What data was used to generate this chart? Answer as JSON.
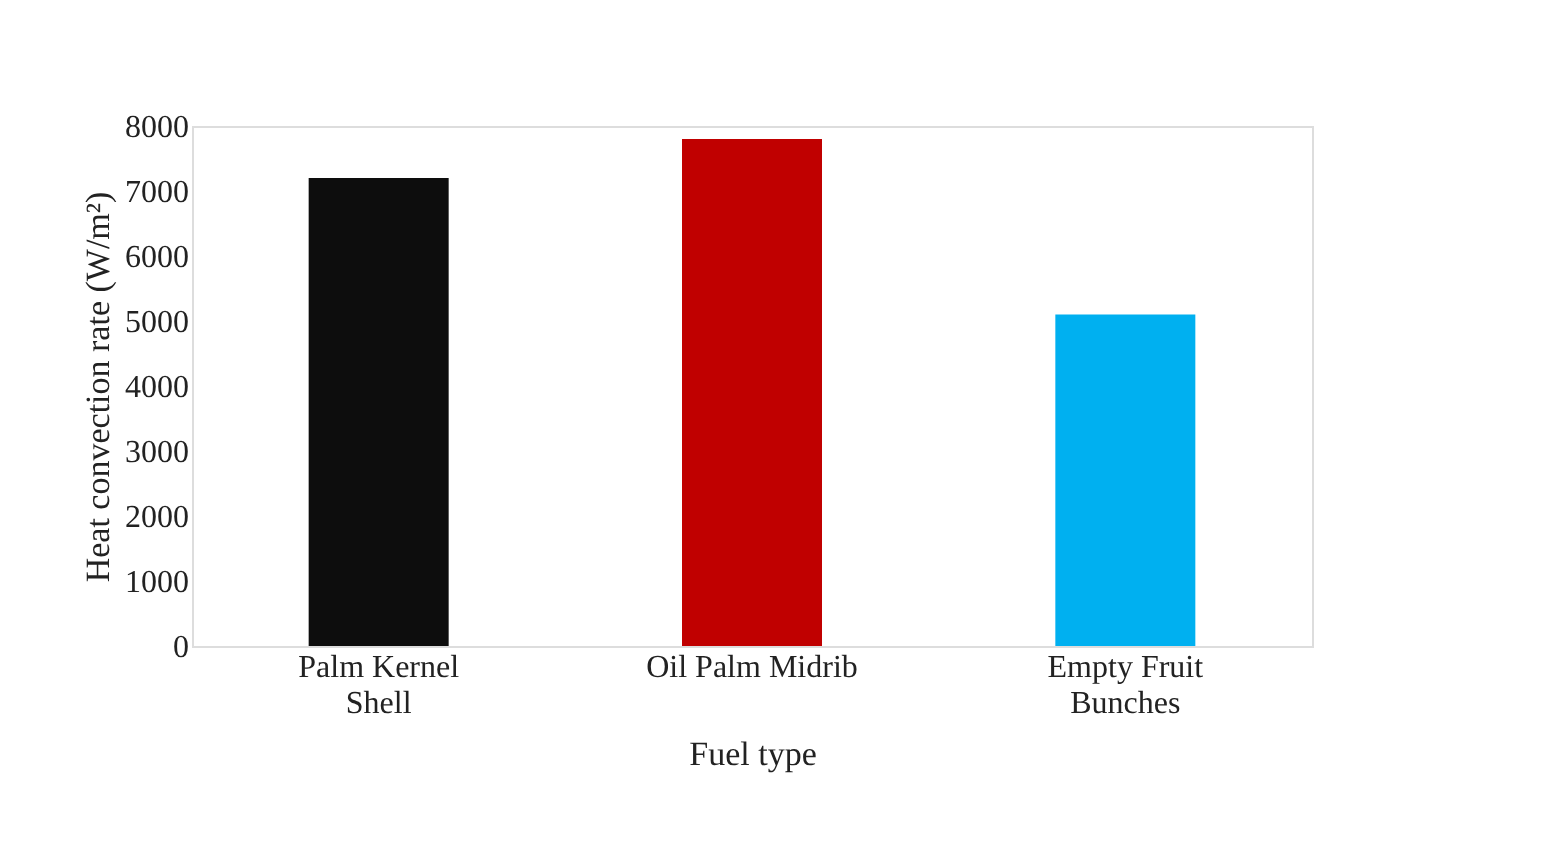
{
  "chart_data": {
    "type": "bar",
    "xlabel": "Fuel type",
    "ylabel": "Heat convection rate (W/m²)",
    "categories": [
      "Palm Kernel Shell",
      "Oil Palm Midrib",
      "Empty Fruit Bunches"
    ],
    "values": [
      7200,
      7800,
      5100
    ],
    "colors": [
      "#0d0d0d",
      "#c00000",
      "#00b0f0"
    ],
    "ylim": [
      0,
      8000
    ],
    "yticks": [
      0,
      1000,
      2000,
      3000,
      4000,
      5000,
      6000,
      7000,
      8000
    ],
    "grid": false
  }
}
